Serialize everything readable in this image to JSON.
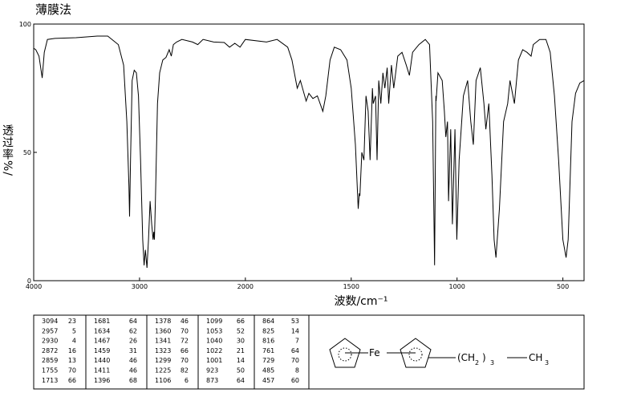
{
  "chart_data": {
    "type": "line",
    "title": "薄膜法",
    "x_label": "波数/cm⁻¹",
    "y_label": "透过率%/",
    "color": "#000000",
    "xlim": [
      4000,
      400
    ],
    "ylim": [
      0,
      100
    ],
    "xticks": [
      4000,
      3000,
      2000,
      1500,
      1000,
      500
    ],
    "yticks": [
      0,
      50,
      100
    ],
    "x": [
      4000,
      3980,
      3950,
      3920,
      3900,
      3870,
      3800,
      3600,
      3400,
      3300,
      3200,
      3150,
      3120,
      3100,
      3094,
      3085,
      3070,
      3050,
      3030,
      3010,
      2990,
      2970,
      2957,
      2945,
      2930,
      2915,
      2900,
      2885,
      2872,
      2865,
      2859,
      2850,
      2830,
      2810,
      2780,
      2750,
      2720,
      2700,
      2680,
      2650,
      2600,
      2500,
      2450,
      2400,
      2300,
      2200,
      2150,
      2100,
      2050,
      2000,
      1900,
      1850,
      1800,
      1780,
      1755,
      1740,
      1713,
      1700,
      1681,
      1660,
      1634,
      1620,
      1600,
      1580,
      1550,
      1520,
      1500,
      1480,
      1467,
      1462,
      1459,
      1450,
      1440,
      1430,
      1420,
      1411,
      1400,
      1396,
      1385,
      1378,
      1370,
      1360,
      1350,
      1341,
      1330,
      1323,
      1310,
      1299,
      1280,
      1260,
      1240,
      1225,
      1210,
      1180,
      1150,
      1130,
      1115,
      1106,
      1100,
      1099,
      1090,
      1070,
      1060,
      1053,
      1045,
      1040,
      1030,
      1022,
      1010,
      1001,
      990,
      970,
      950,
      935,
      923,
      910,
      890,
      873,
      864,
      850,
      835,
      825,
      816,
      800,
      780,
      761,
      750,
      729,
      710,
      690,
      670,
      650,
      640,
      610,
      580,
      560,
      540,
      520,
      500,
      485,
      475,
      457,
      440,
      420,
      400
    ],
    "values": [
      90.6,
      90,
      87.5,
      79,
      89,
      94,
      94.4,
      94.7,
      95.3,
      95.3,
      92,
      84,
      62,
      37,
      25,
      47,
      78,
      82,
      81,
      72,
      47,
      16,
      6,
      12,
      5,
      16,
      31,
      22,
      16,
      19,
      16,
      31,
      69,
      81,
      86,
      87,
      90,
      87.5,
      92,
      93,
      94,
      93,
      92,
      94,
      93,
      92.8,
      91,
      92.5,
      91,
      94,
      93,
      94,
      91,
      86,
      75,
      78,
      70,
      73,
      71,
      72,
      66,
      72,
      86,
      91,
      90,
      86,
      75,
      53,
      28,
      34,
      33,
      50,
      47,
      72,
      66,
      47,
      75,
      69,
      72,
      47,
      78,
      69,
      81,
      75,
      83,
      69,
      84,
      75,
      87.5,
      89,
      84,
      80,
      89,
      92,
      94,
      92,
      62,
      6,
      72,
      70,
      81,
      78,
      66,
      56,
      62,
      31,
      59,
      22,
      59,
      16,
      47,
      72,
      78,
      62,
      53,
      78,
      83,
      69,
      59,
      69,
      41,
      16,
      9,
      28,
      62,
      69,
      78,
      69,
      86,
      90,
      89,
      87.5,
      92,
      94,
      94,
      89,
      72,
      47,
      16,
      9,
      16,
      62,
      73,
      77,
      78
    ]
  },
  "peak_table": {
    "columns": [
      [
        [
          3094,
          23
        ],
        [
          2957,
          5
        ],
        [
          2930,
          4
        ],
        [
          2872,
          16
        ],
        [
          2859,
          13
        ],
        [
          1755,
          70
        ],
        [
          1713,
          66
        ]
      ],
      [
        [
          1681,
          64
        ],
        [
          1634,
          62
        ],
        [
          1467,
          26
        ],
        [
          1459,
          31
        ],
        [
          1440,
          46
        ],
        [
          1411,
          46
        ],
        [
          1396,
          68
        ]
      ],
      [
        [
          1378,
          46
        ],
        [
          1360,
          70
        ],
        [
          1341,
          72
        ],
        [
          1323,
          66
        ],
        [
          1299,
          70
        ],
        [
          1225,
          82
        ],
        [
          1106,
          6
        ]
      ],
      [
        [
          1099,
          66
        ],
        [
          1053,
          52
        ],
        [
          1040,
          30
        ],
        [
          1022,
          21
        ],
        [
          1001,
          14
        ],
        [
          923,
          50
        ],
        [
          873,
          64
        ]
      ],
      [
        [
          864,
          53
        ],
        [
          825,
          14
        ],
        [
          816,
          7
        ],
        [
          761,
          64
        ],
        [
          729,
          70
        ],
        [
          485,
          8
        ],
        [
          457,
          60
        ]
      ]
    ]
  },
  "structure": {
    "metal": "Fe",
    "chain": [
      "(CH",
      "2",
      ")",
      "3",
      "CH",
      "3"
    ]
  }
}
